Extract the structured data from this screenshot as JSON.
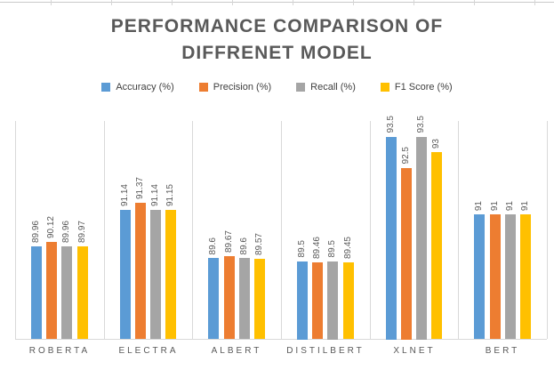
{
  "chart_data": {
    "type": "bar",
    "title": "PERFORMANCE COMPARISON OF DIFFRENET MODEL",
    "title_lines": [
      "PERFORMANCE COMPARISON OF",
      "DIFFRENET MODEL"
    ],
    "categories": [
      "ROBERTA",
      "ELECTRA",
      "ALBERT",
      "DISTILBERT",
      "XLNET",
      "BERT"
    ],
    "series": [
      {
        "name": "Accuracy (%)",
        "color": "#5B9BD5",
        "values": [
          89.96,
          91.14,
          89.6,
          89.5,
          93.5,
          91
        ]
      },
      {
        "name": "Precision (%)",
        "color": "#ED7D31",
        "values": [
          90.12,
          91.37,
          89.67,
          89.46,
          92.5,
          91
        ]
      },
      {
        "name": "Recall (%)",
        "color": "#A5A5A5",
        "values": [
          89.96,
          91.14,
          89.6,
          89.5,
          93.5,
          91
        ]
      },
      {
        "name": "F1 Score (%)",
        "color": "#FFC000",
        "values": [
          89.97,
          91.15,
          89.57,
          89.45,
          93,
          91
        ]
      }
    ],
    "ylim": [
      87,
      94
    ],
    "legend_position": "top",
    "grid": "vertical category separators",
    "data_labels": "shown, rotated 90 degrees above bars",
    "axis_line_color": "#d9d9d9",
    "title_color": "#595959",
    "label_color": "#595959"
  }
}
